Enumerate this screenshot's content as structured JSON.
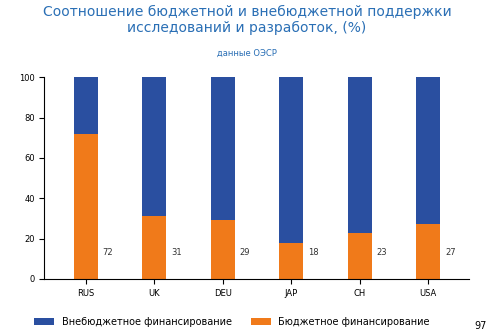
{
  "chart_data": {
    "type": "bar",
    "title": "Соотношение бюджетной и внебюджетной поддержки исследований и разработок, (%)",
    "subtitle": "данные ОЭСР",
    "categories": [
      "RUS",
      "UK",
      "DEU",
      "JAP",
      "CH",
      "USA"
    ],
    "stacked": true,
    "series": [
      {
        "name": "Бюджетное финансирование",
        "color": "#f07a1a",
        "values": [
          72,
          31,
          29,
          18,
          23,
          27
        ],
        "data_labels": true
      },
      {
        "name": "Внебюджетное финансирование",
        "color": "#2a4fa0",
        "values": [
          28,
          69,
          71,
          82,
          77,
          73
        ]
      }
    ],
    "ylim": [
      0,
      100
    ],
    "yticks": [
      0,
      20,
      40,
      60,
      80,
      100
    ],
    "legend": "lower center",
    "annotations": [
      "97"
    ]
  }
}
